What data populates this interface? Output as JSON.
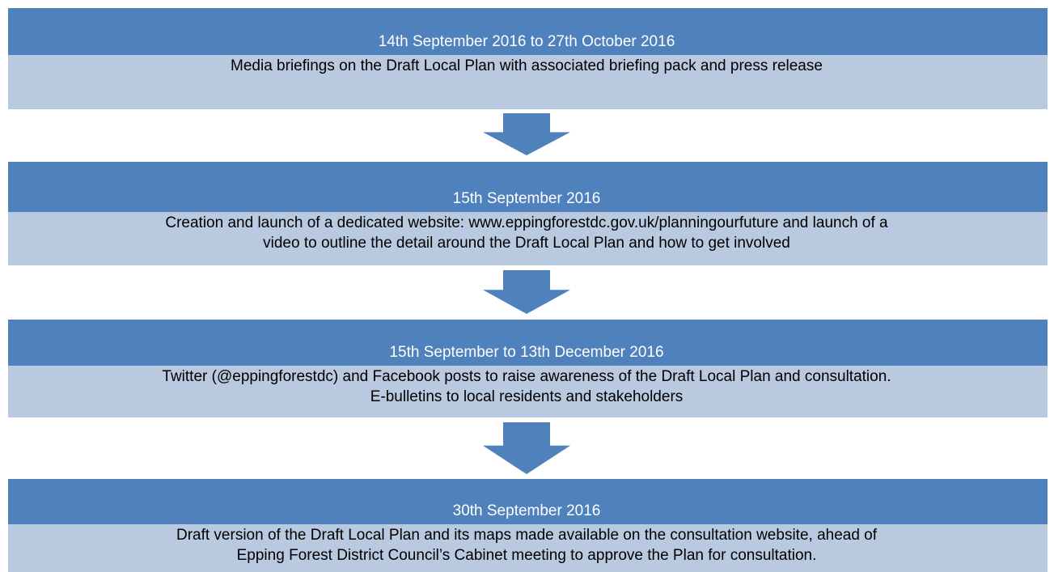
{
  "steps": [
    {
      "date": "14th September 2016 to 27th October 2016",
      "lines": [
        "Media briefings on the Draft Local Plan with associated briefing pack and press release"
      ]
    },
    {
      "date": "15th September 2016",
      "lines": [
        "Creation and launch of a dedicated website: www.eppingforestdc.gov.uk/planningourfuture and launch of a",
        "video to outline the detail around the Draft Local Plan and how to get involved"
      ]
    },
    {
      "date": "15th September to 13th December 2016",
      "lines": [
        "Twitter (@eppingforestdc) and Facebook posts to raise awareness of the Draft Local Plan and consultation.",
        "E-bulletins to local residents and stakeholders"
      ]
    },
    {
      "date": "30th September 2016",
      "lines": [
        "Draft version of the Draft Local Plan and its maps made available on the consultation website, ahead of",
        "Epping Forest District Council’s Cabinet meeting to approve the Plan for consultation."
      ]
    }
  ]
}
